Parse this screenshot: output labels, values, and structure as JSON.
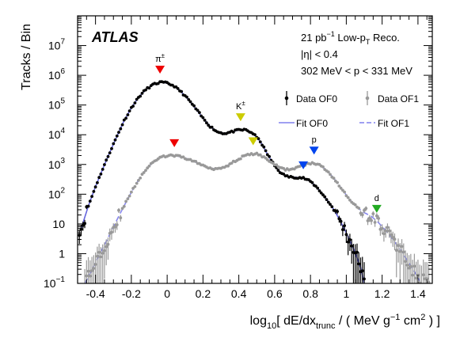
{
  "chart_data": {
    "type": "scatter",
    "experiment": "ATLAS",
    "annotations": [
      "21 pb",
      "−1",
      " Low-p",
      "T",
      " Reco.",
      "|η| < 0.4",
      "302 MeV < p < 331 MeV"
    ],
    "xlabel_parts": [
      "log",
      "10",
      "[ dE/dx",
      "trunc",
      " / ( MeV g",
      "−1",
      " cm",
      "2",
      " ) ]"
    ],
    "ylabel": "Tracks / Bin",
    "xlim": [
      -0.5,
      1.48
    ],
    "ylim": [
      0.1,
      100000000
    ],
    "yscale": "log",
    "x_ticks": [
      "-0.4",
      "-0.2",
      "0",
      "0.2",
      "0.4",
      "0.6",
      "0.8",
      "1",
      "1.2",
      "1.4"
    ],
    "x_tick_values": [
      -0.4,
      -0.2,
      0,
      0.2,
      0.4,
      0.6,
      0.8,
      1.0,
      1.2,
      1.4
    ],
    "y_ticks": [
      {
        "base": "10",
        "exp": "−1",
        "value": 0.1
      },
      {
        "base": "1",
        "exp": "",
        "value": 1
      },
      {
        "base": "10",
        "exp": "",
        "value": 10
      },
      {
        "base": "10",
        "exp": "2",
        "value": 100
      },
      {
        "base": "10",
        "exp": "3",
        "value": 1000
      },
      {
        "base": "10",
        "exp": "4",
        "value": 10000
      },
      {
        "base": "10",
        "exp": "5",
        "value": 100000
      },
      {
        "base": "10",
        "exp": "6",
        "value": 1000000
      },
      {
        "base": "10",
        "exp": "7",
        "value": 10000000
      }
    ],
    "legend_position": "top-right",
    "legend": [
      {
        "label": "Data OF0",
        "kind": "marker",
        "color": "#000000"
      },
      {
        "label": "Data OF1",
        "kind": "marker",
        "color": "#999999"
      },
      {
        "label": "Fit OF0",
        "kind": "solid-line",
        "color": "#8080ee"
      },
      {
        "label": "Fit OF1",
        "kind": "dashed-line",
        "color": "#8080ee"
      }
    ],
    "fits": {
      "OF0": {
        "color": "#6666dd",
        "points": [
          [
            -0.48,
            7
          ],
          [
            -0.44,
            40
          ],
          [
            -0.4,
            180
          ],
          [
            -0.36,
            700
          ],
          [
            -0.32,
            2600
          ],
          [
            -0.28,
            9000
          ],
          [
            -0.24,
            30000
          ],
          [
            -0.2,
            80000
          ],
          [
            -0.16,
            180000
          ],
          [
            -0.12,
            330000
          ],
          [
            -0.08,
            480000
          ],
          [
            -0.04,
            580000
          ],
          [
            0.0,
            550000
          ],
          [
            0.04,
            430000
          ],
          [
            0.08,
            270000
          ],
          [
            0.12,
            150000
          ],
          [
            0.16,
            75000
          ],
          [
            0.2,
            36000
          ],
          [
            0.24,
            19000
          ],
          [
            0.28,
            12500
          ],
          [
            0.32,
            11000
          ],
          [
            0.36,
            12500
          ],
          [
            0.4,
            14500
          ],
          [
            0.44,
            14500
          ],
          [
            0.48,
            11000
          ],
          [
            0.52,
            6000
          ],
          [
            0.56,
            2200
          ],
          [
            0.6,
            900
          ],
          [
            0.64,
            480
          ],
          [
            0.68,
            380
          ],
          [
            0.72,
            370
          ],
          [
            0.76,
            350
          ],
          [
            0.8,
            270
          ],
          [
            0.84,
            160
          ],
          [
            0.88,
            80
          ],
          [
            0.92,
            38
          ],
          [
            0.96,
            15
          ],
          [
            1.0,
            5
          ],
          [
            1.04,
            1.5
          ],
          [
            1.08,
            0.35
          ],
          [
            1.1,
            0.1
          ]
        ]
      },
      "OF1": {
        "color": "#8888ee",
        "points": [
          [
            -0.46,
            0.1
          ],
          [
            -0.42,
            0.28
          ],
          [
            -0.38,
            0.9
          ],
          [
            -0.34,
            2.6
          ],
          [
            -0.3,
            8
          ],
          [
            -0.26,
            24
          ],
          [
            -0.22,
            70
          ],
          [
            -0.18,
            190
          ],
          [
            -0.14,
            460
          ],
          [
            -0.1,
            900
          ],
          [
            -0.06,
            1450
          ],
          [
            -0.02,
            1850
          ],
          [
            0.02,
            2000
          ],
          [
            0.06,
            1900
          ],
          [
            0.1,
            1650
          ],
          [
            0.14,
            1350
          ],
          [
            0.18,
            1050
          ],
          [
            0.22,
            820
          ],
          [
            0.26,
            720
          ],
          [
            0.3,
            760
          ],
          [
            0.34,
            950
          ],
          [
            0.38,
            1300
          ],
          [
            0.42,
            1800
          ],
          [
            0.46,
            2200
          ],
          [
            0.5,
            2250
          ],
          [
            0.54,
            1800
          ],
          [
            0.58,
            1200
          ],
          [
            0.62,
            830
          ],
          [
            0.66,
            680
          ],
          [
            0.7,
            700
          ],
          [
            0.74,
            850
          ],
          [
            0.78,
            1050
          ],
          [
            0.82,
            1100
          ],
          [
            0.86,
            900
          ],
          [
            0.9,
            560
          ],
          [
            0.94,
            290
          ],
          [
            0.98,
            135
          ],
          [
            1.02,
            65
          ],
          [
            1.06,
            36
          ],
          [
            1.1,
            24
          ],
          [
            1.14,
            18
          ],
          [
            1.18,
            11
          ],
          [
            1.22,
            6
          ],
          [
            1.26,
            3
          ],
          [
            1.3,
            1.4
          ],
          [
            1.34,
            0.6
          ],
          [
            1.38,
            0.25
          ],
          [
            1.41,
            0.12
          ]
        ]
      }
    },
    "data_series": [
      {
        "name": "Data OF0",
        "color": "#000000",
        "seed": 11,
        "x_from": -0.49,
        "x_to": 1.1,
        "step": 0.01,
        "curve": "OF0",
        "err_from_x": 0.98
      },
      {
        "name": "Data OF1",
        "color": "#999999",
        "seed": 29,
        "x_from": -0.46,
        "x_to": 1.46,
        "step": 0.01,
        "curve": "OF1",
        "err_below": 30
      }
    ],
    "peaks": [
      {
        "label": "π",
        "sup": "±",
        "x": -0.04,
        "y": 580000,
        "color": "#ee0000"
      },
      {
        "label": "K",
        "sup": "±",
        "x": 0.41,
        "y": 14500,
        "color": "#cccc00"
      },
      {
        "label": "",
        "sup": "",
        "x": 0.76,
        "y": 350,
        "color": "#0044ee"
      },
      {
        "label": "",
        "sup": "",
        "x": 0.04,
        "y": 1950,
        "color": "#ee0000"
      },
      {
        "label": "",
        "sup": "",
        "x": 0.48,
        "y": 2250,
        "color": "#cccc00"
      },
      {
        "label": "p",
        "sup": "",
        "x": 0.82,
        "y": 1100,
        "color": "#0044ee"
      },
      {
        "label": "d",
        "sup": "",
        "x": 1.17,
        "y": 12,
        "color": "#22aa22"
      }
    ]
  }
}
